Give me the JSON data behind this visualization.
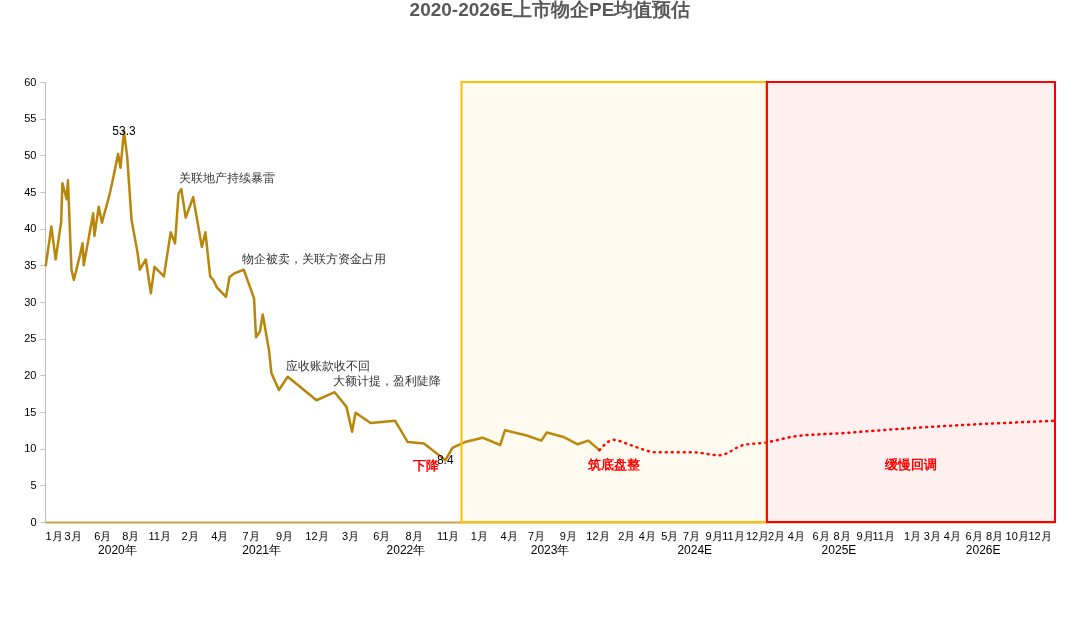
{
  "chart_data": {
    "type": "line",
    "title": "2020-2026E上市物企PE均值预估",
    "xlim": [
      "2020-01-01",
      "2026-12-31"
    ],
    "xticks": [
      {
        "value": "2020-01-01",
        "label": "1月"
      },
      {
        "value": "2020-03-11",
        "label": "3月"
      },
      {
        "value": "2020-05-25",
        "label": "6月"
      },
      {
        "value": "2020-08-04",
        "label": "8月"
      },
      {
        "value": "2020-10-16",
        "label": "11月"
      },
      {
        "value": "2021-01-01",
        "label": "2月"
      },
      {
        "value": "2021-03-17",
        "label": "4月"
      },
      {
        "value": "2021-06-04",
        "label": "7月"
      },
      {
        "value": "2021-08-28",
        "label": "9月"
      },
      {
        "value": "2021-11-18",
        "label": "12月"
      },
      {
        "value": "2022-02-11",
        "label": "3月"
      },
      {
        "value": "2022-05-01",
        "label": "6月"
      },
      {
        "value": "2022-07-22",
        "label": "8月"
      },
      {
        "value": "2022-10-16",
        "label": "11月"
      },
      {
        "value": "2023-01-03",
        "label": "1月"
      },
      {
        "value": "2023-03-19",
        "label": "4月"
      },
      {
        "value": "2023-05-28",
        "label": "7月"
      },
      {
        "value": "2023-08-16",
        "label": "9月"
      },
      {
        "value": "2023-10-30",
        "label": "12月"
      },
      {
        "value": "2024-01-11",
        "label": "2月"
      },
      {
        "value": "2024-03-03",
        "label": "4月"
      },
      {
        "value": "2024-04-29",
        "label": "5月"
      },
      {
        "value": "2024-06-23",
        "label": "7月"
      },
      {
        "value": "2024-08-19",
        "label": "9月"
      },
      {
        "value": "2024-10-07",
        "label": "11月"
      },
      {
        "value": "2024-12-07",
        "label": "12月"
      },
      {
        "value": "2025-01-24",
        "label": "2月"
      },
      {
        "value": "2025-03-15",
        "label": "4月"
      },
      {
        "value": "2025-05-17",
        "label": "6月"
      },
      {
        "value": "2025-07-09",
        "label": "8月"
      },
      {
        "value": "2025-09-05",
        "label": "9月"
      },
      {
        "value": "2025-10-22",
        "label": "11月"
      },
      {
        "value": "2026-01-03",
        "label": "1月"
      },
      {
        "value": "2026-02-22",
        "label": "3月"
      },
      {
        "value": "2026-04-14",
        "label": "4月"
      },
      {
        "value": "2026-06-08",
        "label": "6月"
      },
      {
        "value": "2026-07-30",
        "label": "8月"
      },
      {
        "value": "2026-09-25",
        "label": "10月"
      },
      {
        "value": "2026-11-22",
        "label": "12月"
      }
    ],
    "ylim": [
      0,
      60
    ],
    "yticks": [
      0,
      5,
      10,
      15,
      20,
      25,
      30,
      35,
      40,
      45,
      50,
      55,
      60
    ],
    "series": [
      {
        "color": "#b8860b",
        "line_style": "solid",
        "x": [
          "2020-01-03",
          "2020-01-14",
          "2020-01-17",
          "2020-01-28",
          "2020-02-11",
          "2020-02-14",
          "2020-02-25",
          "2020-02-28",
          "2020-03-08",
          "2020-03-14",
          "2020-03-30",
          "2020-04-05",
          "2020-04-08",
          "2020-05-02",
          "2020-05-05",
          "2020-05-16",
          "2020-05-24",
          "2020-06-13",
          "2020-06-22",
          "2020-07-04",
          "2020-07-10",
          "2020-07-19",
          "2020-07-27",
          "2020-08-07",
          "2020-08-22",
          "2020-08-28",
          "2020-09-12",
          "2020-09-25",
          "2020-10-04",
          "2020-10-28",
          "2020-11-14",
          "2020-11-25",
          "2020-12-04",
          "2020-12-11",
          "2020-12-22",
          "2021-01-10",
          "2021-02-01",
          "2021-02-10",
          "2021-02-22",
          "2021-03-02",
          "2021-03-11",
          "2021-04-03",
          "2021-04-12",
          "2021-04-24",
          "2021-05-18",
          "2021-06-13",
          "2021-06-18",
          "2021-06-28",
          "2021-07-05",
          "2021-07-21",
          "2021-07-27",
          "2021-08-15",
          "2021-09-06",
          "2021-10-06",
          "2021-11-18",
          "2022-01-03",
          "2022-02-02",
          "2022-02-16",
          "2022-02-25",
          "2022-04-04",
          "2022-06-05",
          "2022-07-07",
          "2022-08-17",
          "2022-10-04",
          "2022-10-10",
          "2022-10-28",
          "2022-11-29",
          "2023-01-12",
          "2023-02-26",
          "2023-03-10",
          "2023-05-04",
          "2023-06-10",
          "2023-06-24",
          "2023-08-05",
          "2023-09-10",
          "2023-10-07",
          "2023-11-04"
        ],
        "values": [
          35.0,
          39.1,
          40.3,
          35.8,
          41.0,
          46.2,
          44.0,
          46.6,
          34.4,
          33.0,
          36.5,
          38.0,
          35.0,
          42.1,
          39.0,
          43.0,
          40.8,
          44.8,
          47.0,
          50.2,
          48.3,
          53.3,
          49.8,
          41.2,
          36.8,
          34.4,
          35.8,
          31.2,
          34.8,
          33.5,
          39.5,
          38.0,
          44.8,
          45.4,
          41.5,
          44.3,
          37.5,
          39.5,
          33.5,
          33.0,
          32.0,
          30.7,
          33.4,
          33.9,
          34.4,
          30.5,
          25.2,
          26.0,
          28.3,
          23.4,
          20.3,
          18.0,
          19.8,
          18.5,
          16.6,
          17.7,
          15.7,
          12.3,
          14.9,
          13.5,
          13.8,
          10.9,
          10.7,
          8.7,
          8.4,
          10.1,
          10.9,
          11.5,
          10.5,
          12.5,
          11.8,
          11.1,
          12.2,
          11.6,
          10.6,
          11.1,
          9.8
        ],
        "value_labels": [
          null,
          null,
          null,
          null,
          null,
          null,
          null,
          null,
          null,
          null,
          null,
          null,
          null,
          null,
          null,
          null,
          null,
          null,
          null,
          null,
          null,
          "53.3",
          null,
          null,
          null,
          null,
          null,
          null,
          null,
          null,
          null,
          null,
          null,
          null,
          null,
          null,
          null,
          null,
          null,
          null,
          null,
          null,
          null,
          null,
          null,
          null,
          null,
          null,
          null,
          null,
          null,
          null,
          null,
          null,
          null,
          null,
          null,
          null,
          null,
          null,
          null,
          null,
          null,
          null,
          "8.4",
          null,
          null,
          null,
          null,
          null,
          null,
          null,
          null,
          null,
          null,
          null,
          null
        ]
      },
      {
        "color": "#ff0000",
        "line_style": "dotted",
        "x": [
          "2023-11-04",
          "2023-12-10",
          "2024-01-21",
          "2024-03-28",
          "2024-06-27",
          "2024-09-03",
          "2024-11-03",
          "2024-12-25",
          "2025-03-15",
          "2025-07-07",
          "2025-12-04",
          "2026-05-03",
          "2026-12-28"
        ],
        "values": [
          9.8,
          11.2,
          10.5,
          9.5,
          9.5,
          9.1,
          10.5,
          10.8,
          11.7,
          12.1,
          12.7,
          13.2,
          13.8
        ]
      }
    ],
    "bands": [
      {
        "axis": "x",
        "from": "2022-11-20",
        "to": "2024-12-31",
        "label": "筑底盘整",
        "color": "#ffc000"
      },
      {
        "axis": "x",
        "from": "2025-01-01",
        "to": "2026-12-31",
        "label": "缓慢回调",
        "color": "#ff0000"
      }
    ],
    "x2lim": [
      "2020-01-01",
      "2026-12-31"
    ],
    "x2ticks": [
      {
        "value": "2020-07-01",
        "label": "2020年"
      },
      {
        "value": "2021-07-01",
        "label": "2021年"
      },
      {
        "value": "2022-07-01",
        "label": "2022年"
      },
      {
        "value": "2023-07-01",
        "label": "2023年"
      },
      {
        "value": "2024-07-01",
        "label": "2024E"
      },
      {
        "value": "2025-07-01",
        "label": "2025E"
      },
      {
        "value": "2026-07-01",
        "label": "2026E"
      }
    ],
    "annotations": [
      {
        "text": "关联地产持续暴雷",
        "x": "2020-12-11",
        "y": 45.4
      },
      {
        "text": "物企被卖，关联方资金占用",
        "x": "2021-05-18",
        "y": 34.4
      },
      {
        "text": "应收账款收不回",
        "x": "2021-09-06",
        "y": 19.8
      },
      {
        "text": "大额计提，盈利陡降",
        "x": "2022-01-03",
        "y": 17.7
      },
      {
        "text": "下降",
        "x": "2022-10-04",
        "y": 8.7
      }
    ]
  }
}
